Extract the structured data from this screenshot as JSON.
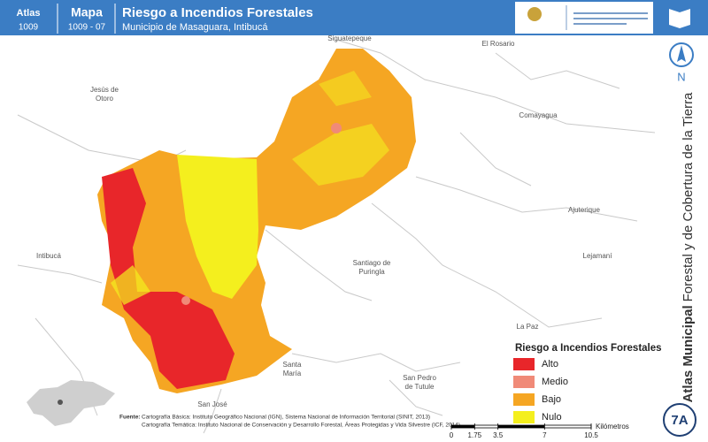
{
  "header": {
    "atlas_label": "Atlas",
    "atlas_number": "1009",
    "map_label": "Mapa",
    "map_number": "1009 - 07",
    "title": "Riesgo a Incendios Forestales",
    "subtitle": "Municipio de Masaguara, Intibucá"
  },
  "side_title": {
    "bold": "Atlas Municipal",
    "rest": "Forestal y de Cobertura de la Tierra"
  },
  "north": "N",
  "sheet": "7A",
  "places": [
    "Siguatepeque",
    "El Rosario",
    "Jesús de",
    "Otoro",
    "Comayagua",
    "Ajuterique",
    "Intibucá",
    "Santiago de",
    "Puringla",
    "Lejamaní",
    "La Paz",
    "Santa",
    "María",
    "San José",
    "San Pedro",
    "de Tutule"
  ],
  "legend": {
    "title": "Riesgo a Incendios Forestales",
    "items": [
      {
        "label": "Alto",
        "color": "#e8262a"
      },
      {
        "label": "Medio",
        "color": "#f08a78"
      },
      {
        "label": "Bajo",
        "color": "#f5a623"
      },
      {
        "label": "Nulo",
        "color": "#f4ef1e"
      }
    ]
  },
  "sources": {
    "label": "Fuente:",
    "line1": "Cartografía Básica: Instituto Geográfico Nacional (IGN), Sistema Nacional de Información Territorial (SINIT, 2013)",
    "line2": "Cartografía Temática: Instituto Nacional de Conservación y Desarrollo Forestal, Áreas Protegidas y Vida Silvestre (ICF, 2014)"
  },
  "scale": {
    "ticks": [
      0,
      1.75,
      3.5,
      7,
      10.5
    ],
    "unit": "Kilómetros"
  }
}
